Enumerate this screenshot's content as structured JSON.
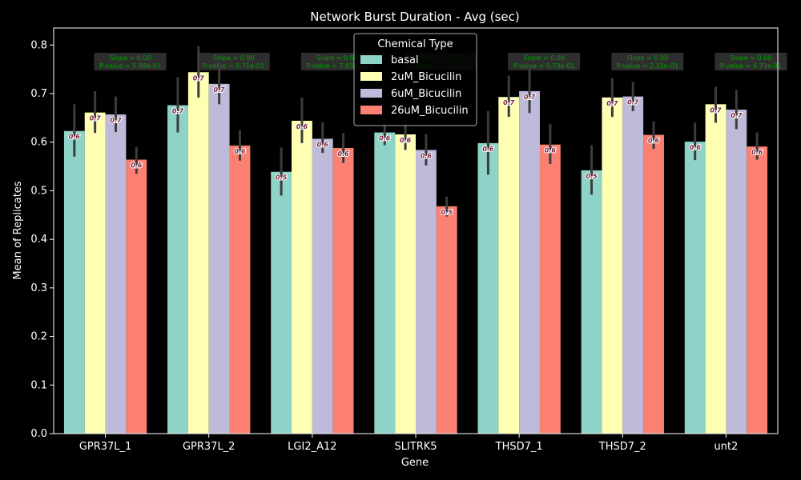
{
  "chart_data": {
    "type": "bar",
    "title": "Network Burst Duration - Avg (sec)",
    "xlabel": "Gene",
    "ylabel": "Mean of Replicates",
    "ylim": [
      0,
      0.835
    ],
    "yticks": [
      0.0,
      0.1,
      0.2,
      0.3,
      0.4,
      0.5,
      0.6,
      0.7,
      0.8
    ],
    "ytick_labels": [
      "0.0",
      "0.1",
      "0.2",
      "0.3",
      "0.4",
      "0.5",
      "0.6",
      "0.7",
      "0.8"
    ],
    "categories": [
      "GPR37L_1",
      "GPR37L_2",
      "LGI2_A12",
      "SLITRK5",
      "THSD7_1",
      "THSD7_2",
      "unt2"
    ],
    "legend_title": "Chemical Type",
    "legend_position": "top-center",
    "series": [
      {
        "name": "basal",
        "color": "#8dd3c7",
        "values": [
          0.623,
          0.676,
          0.539,
          0.62,
          0.598,
          0.542,
          0.601
        ],
        "err_low": [
          0.57,
          0.62,
          0.49,
          0.594,
          0.533,
          0.492,
          0.563
        ],
        "err_high": [
          0.678,
          0.734,
          0.589,
          0.65,
          0.664,
          0.594,
          0.64
        ],
        "labels": [
          "0.6",
          "0.7",
          "0.5",
          "0.6",
          "0.6",
          "0.5",
          "0.6"
        ]
      },
      {
        "name": "2uM_Bicucilin",
        "color": "#ffffb3",
        "values": [
          0.661,
          0.744,
          0.644,
          0.616,
          0.693,
          0.692,
          0.678
        ],
        "err_low": [
          0.619,
          0.692,
          0.598,
          0.584,
          0.652,
          0.652,
          0.64
        ],
        "err_high": [
          0.705,
          0.798,
          0.692,
          0.646,
          0.737,
          0.732,
          0.714
        ],
        "labels": [
          "0.7",
          "0.7",
          "0.6",
          "0.6",
          "0.7",
          "0.7",
          "0.7"
        ]
      },
      {
        "name": "6uM_Bicucilin",
        "color": "#bebada",
        "values": [
          0.657,
          0.72,
          0.607,
          0.584,
          0.705,
          0.694,
          0.667
        ],
        "err_low": [
          0.621,
          0.678,
          0.578,
          0.552,
          0.66,
          0.664,
          0.627
        ],
        "err_high": [
          0.694,
          0.765,
          0.641,
          0.617,
          0.752,
          0.724,
          0.708
        ],
        "labels": [
          "0.7",
          "0.7",
          "0.6",
          "0.6",
          "0.7",
          "0.7",
          "0.7"
        ]
      },
      {
        "name": "26uM_Bicucilin",
        "color": "#fb8072",
        "values": [
          0.564,
          0.593,
          0.588,
          0.468,
          0.595,
          0.615,
          0.591
        ],
        "err_low": [
          0.535,
          0.562,
          0.557,
          0.447,
          0.555,
          0.586,
          0.564
        ],
        "err_high": [
          0.59,
          0.625,
          0.619,
          0.488,
          0.637,
          0.643,
          0.62
        ],
        "labels": [
          "0.6",
          "0.6",
          "0.6",
          "0.5",
          "0.6",
          "0.6",
          "0.6"
        ]
      }
    ],
    "annotations": [
      {
        "category": "GPR37L_1",
        "line1": "Slope = 0.00",
        "line2": "P-value = 5.98e-01"
      },
      {
        "category": "GPR37L_2",
        "line1": "Slope = 0.00",
        "line2": "P-value = 5.71e-01"
      },
      {
        "category": "LGI2_A12",
        "line1": "Slope = 0.00",
        "line2": "P-value = 7.03e-01"
      },
      {
        "category": "SLITRK5",
        "line1": "Slope = 0.00",
        "line2": "P-value = 7.03e-01"
      },
      {
        "category": "THSD7_1",
        "line1": "Slope = 0.00",
        "line2": "P-value = 5.73e-01"
      },
      {
        "category": "THSD7_2",
        "line1": "Slope = 0.00",
        "line2": "P-value = 2.15e-01"
      },
      {
        "category": "unt2",
        "line1": "Slope = 0.00",
        "line2": "P-value = 6.71e-01"
      }
    ],
    "grid": false,
    "colors": {
      "background": "#000000",
      "axes": "#ffffff",
      "error_bar": "#3c3c3c",
      "annotation_box": "#333333",
      "annotation_text": "#00a000",
      "value_label": "#7a1f3a"
    }
  }
}
